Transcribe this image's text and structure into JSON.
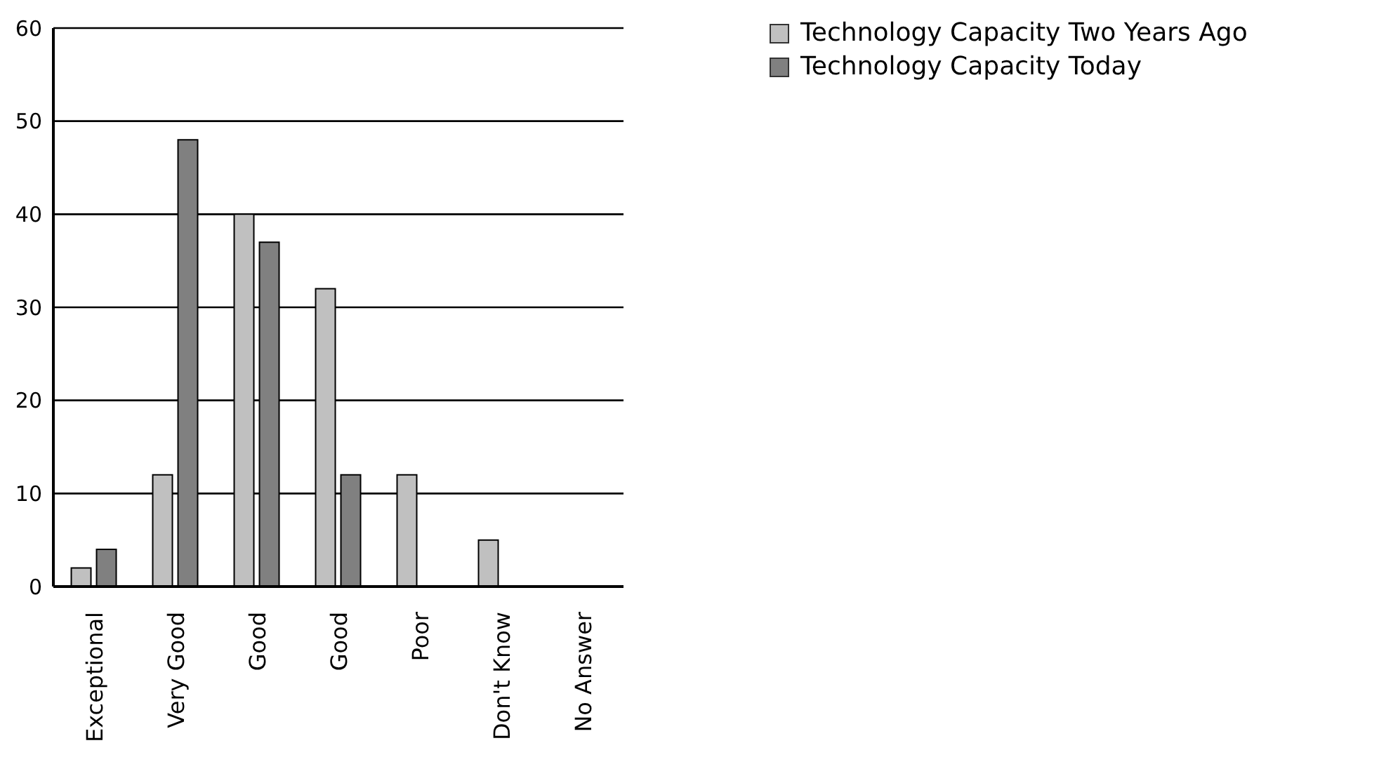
{
  "chart_data": {
    "type": "bar",
    "categories": [
      "Exceptional",
      "Very Good",
      "Good",
      "Good",
      "Poor",
      "Don't Know",
      "No Answer"
    ],
    "series": [
      {
        "name": "Technology Capacity Two Years Ago",
        "color": "#c0c0c0",
        "values": [
          2,
          12,
          40,
          32,
          12,
          5,
          0
        ]
      },
      {
        "name": "Technology Capacity Today",
        "color": "#808080",
        "values": [
          4,
          48,
          37,
          12,
          0,
          0,
          0
        ]
      }
    ],
    "ylim": [
      0,
      60
    ],
    "yticks": [
      0,
      10,
      20,
      30,
      40,
      50,
      60
    ],
    "grid": "y",
    "legend": "top right"
  }
}
